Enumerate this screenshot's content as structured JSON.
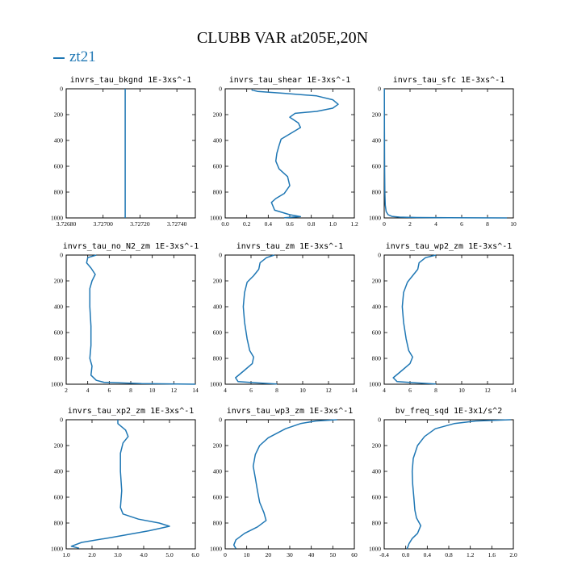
{
  "title": "CLUBB VAR at205E,20N",
  "legend": "zt21",
  "colors": {
    "series": "#1f77b4",
    "axes": "#000000"
  },
  "chart_data": [
    {
      "type": "line",
      "title": "invrs_tau_bkgnd   1E-3xs^-1",
      "xlim": [
        3.7268,
        3.7275
      ],
      "ylim": [
        1000,
        0
      ],
      "xticks": [
        "3.72680",
        "3.72700",
        "3.72720",
        "3.72740"
      ],
      "xtick_values": [
        3.7268,
        3.727,
        3.7272,
        3.7274
      ],
      "yticks": [
        0,
        200,
        400,
        600,
        800,
        1000
      ],
      "series": [
        {
          "name": "zt21",
          "x": [
            3.72712,
            3.72712
          ],
          "y": [
            0,
            1000
          ]
        }
      ]
    },
    {
      "type": "line",
      "title": "invrs_tau_shear   1E-3xs^-1",
      "xlim": [
        0.0,
        1.2
      ],
      "ylim": [
        1000,
        0
      ],
      "xticks": [
        "0.0",
        "0.2",
        "0.4",
        "0.6",
        "0.8",
        "1.0",
        "1.2"
      ],
      "xtick_values": [
        0,
        0.2,
        0.4,
        0.6,
        0.8,
        1.0,
        1.2
      ],
      "yticks": [
        0,
        200,
        400,
        600,
        800,
        1000
      ],
      "series": [
        {
          "name": "zt21",
          "x": [
            0.25,
            0.25,
            0.3,
            0.55,
            0.85,
            1.0,
            1.05,
            1.0,
            0.85,
            0.65,
            0.6,
            0.68,
            0.7,
            0.62,
            0.52,
            0.5,
            0.48,
            0.47,
            0.5,
            0.58,
            0.6,
            0.55,
            0.47,
            0.43,
            0.46,
            0.6,
            0.7,
            0.55
          ],
          "y": [
            5,
            10,
            20,
            35,
            55,
            85,
            120,
            150,
            175,
            190,
            220,
            265,
            300,
            340,
            390,
            440,
            500,
            560,
            620,
            680,
            750,
            810,
            850,
            880,
            940,
            975,
            990,
            998
          ]
        }
      ]
    },
    {
      "type": "line",
      "title": "invrs_tau_sfc   1E-3xs^-1",
      "xlim": [
        0,
        10
      ],
      "ylim": [
        1000,
        0
      ],
      "xticks": [
        "0",
        "2",
        "4",
        "6",
        "8",
        "10"
      ],
      "xtick_values": [
        0,
        2,
        4,
        6,
        8,
        10
      ],
      "yticks": [
        0,
        200,
        400,
        600,
        800,
        1000
      ],
      "series": [
        {
          "name": "zt21",
          "x": [
            0.01,
            0.02,
            0.03,
            0.05,
            0.08,
            0.15,
            0.3,
            0.6,
            1.2,
            2.5,
            5.0,
            9.5
          ],
          "y": [
            0,
            300,
            600,
            800,
            900,
            950,
            975,
            988,
            994,
            997,
            999,
            1000
          ]
        }
      ]
    },
    {
      "type": "line",
      "title": "invrs_tau_no_N2_zm   1E-3xs^-1",
      "xlim": [
        2,
        14
      ],
      "ylim": [
        1000,
        0
      ],
      "xticks": [
        "2",
        "4",
        "6",
        "8",
        "10",
        "12",
        "14"
      ],
      "xtick_values": [
        2,
        4,
        6,
        8,
        10,
        12,
        14
      ],
      "yticks": [
        0,
        200,
        400,
        600,
        800,
        1000
      ],
      "series": [
        {
          "name": "zt21",
          "x": [
            4.8,
            4.0,
            3.9,
            4.3,
            4.7,
            4.4,
            4.2,
            4.2,
            4.3,
            4.3,
            4.2,
            4.4,
            4.3,
            4.8,
            5.5,
            9.0,
            14.0
          ],
          "y": [
            0,
            20,
            60,
            100,
            150,
            200,
            260,
            400,
            550,
            700,
            800,
            860,
            930,
            970,
            985,
            995,
            1000
          ]
        }
      ]
    },
    {
      "type": "line",
      "title": "invrs_tau_zm   1E-3xs^-1",
      "xlim": [
        4,
        14
      ],
      "ylim": [
        1000,
        0
      ],
      "xticks": [
        "4",
        "6",
        "8",
        "10",
        "12",
        "14"
      ],
      "xtick_values": [
        4,
        6,
        8,
        10,
        12,
        14
      ],
      "yticks": [
        0,
        200,
        400,
        600,
        800,
        1000
      ],
      "series": [
        {
          "name": "zt21",
          "x": [
            7.8,
            7.2,
            6.7,
            6.6,
            6.2,
            5.7,
            5.5,
            5.4,
            5.5,
            5.7,
            5.9,
            6.2,
            6.1,
            5.4,
            4.8,
            5.0,
            6.5,
            8.0
          ],
          "y": [
            0,
            20,
            60,
            110,
            160,
            210,
            290,
            400,
            520,
            650,
            740,
            790,
            840,
            900,
            950,
            980,
            990,
            998
          ]
        }
      ]
    },
    {
      "type": "line",
      "title": "invrs_tau_wp2_zm   1E-3xs^-1",
      "xlim": [
        4,
        14
      ],
      "ylim": [
        1000,
        0
      ],
      "xticks": [
        "4",
        "6",
        "8",
        "10",
        "12",
        "14"
      ],
      "xtick_values": [
        4,
        6,
        8,
        10,
        12,
        14
      ],
      "yticks": [
        0,
        200,
        400,
        600,
        800,
        1000
      ],
      "series": [
        {
          "name": "zt21",
          "x": [
            8.0,
            7.2,
            6.7,
            6.6,
            6.2,
            5.8,
            5.5,
            5.4,
            5.5,
            5.7,
            5.9,
            6.2,
            6.0,
            5.3,
            4.7,
            5.0,
            6.5,
            8.0
          ],
          "y": [
            0,
            20,
            60,
            110,
            160,
            210,
            290,
            400,
            520,
            650,
            740,
            790,
            840,
            900,
            950,
            980,
            990,
            998
          ]
        }
      ]
    },
    {
      "type": "line",
      "title": "invrs_tau_xp2_zm   1E-3xs^-1",
      "xlim": [
        1.0,
        6.0
      ],
      "ylim": [
        1000,
        0
      ],
      "xticks": [
        "1.0",
        "2.0",
        "3.0",
        "4.0",
        "5.0",
        "6.0"
      ],
      "xtick_values": [
        1,
        2,
        3,
        4,
        5,
        6
      ],
      "yticks": [
        0,
        200,
        400,
        600,
        800,
        1000
      ],
      "series": [
        {
          "name": "zt21",
          "x": [
            3.0,
            3.0,
            3.3,
            3.4,
            3.2,
            3.1,
            3.1,
            3.15,
            3.1,
            3.2,
            3.8,
            4.6,
            5.0,
            4.2,
            2.8,
            1.6,
            1.2,
            1.5
          ],
          "y": [
            0,
            30,
            80,
            130,
            180,
            260,
            400,
            550,
            680,
            730,
            770,
            800,
            825,
            860,
            910,
            950,
            980,
            995
          ]
        }
      ]
    },
    {
      "type": "line",
      "title": "invrs_tau_wp3_zm   1E-3xs^-1",
      "xlim": [
        0,
        60
      ],
      "ylim": [
        1000,
        0
      ],
      "xticks": [
        "0",
        "10",
        "20",
        "30",
        "40",
        "50",
        "60"
      ],
      "xtick_values": [
        0,
        10,
        20,
        30,
        40,
        50,
        60
      ],
      "yticks": [
        0,
        200,
        400,
        600,
        800,
        1000
      ],
      "series": [
        {
          "name": "zt21",
          "x": [
            52.0,
            42.0,
            35.0,
            28.0,
            20.0,
            16.0,
            14.0,
            13.0,
            14.0,
            15.0,
            16.0,
            18.0,
            19.0,
            15.0,
            9.0,
            5.0,
            4.0,
            5.0
          ],
          "y": [
            0,
            10,
            30,
            70,
            140,
            200,
            270,
            360,
            450,
            550,
            640,
            720,
            780,
            830,
            880,
            930,
            970,
            998
          ]
        }
      ]
    },
    {
      "type": "line",
      "title": "bv_freq_sqd   1E-3x1/s^2",
      "xlim": [
        -0.4,
        2.0
      ],
      "ylim": [
        1000,
        0
      ],
      "xticks": [
        "-0.4",
        "0.0",
        "0.4",
        "0.8",
        "1.2",
        "1.6",
        "2.0"
      ],
      "xtick_values": [
        -0.4,
        0,
        0.4,
        0.8,
        1.2,
        1.6,
        2.0
      ],
      "yticks": [
        0,
        200,
        400,
        600,
        800,
        1000
      ],
      "series": [
        {
          "name": "zt21",
          "x": [
            1.95,
            1.3,
            0.9,
            0.55,
            0.35,
            0.22,
            0.14,
            0.12,
            0.13,
            0.15,
            0.17,
            0.2,
            0.28,
            0.22,
            0.12,
            0.06,
            0.04,
            0.02
          ],
          "y": [
            0,
            10,
            30,
            70,
            130,
            200,
            300,
            400,
            500,
            600,
            700,
            760,
            820,
            880,
            920,
            960,
            985,
            1000
          ]
        }
      ]
    }
  ]
}
